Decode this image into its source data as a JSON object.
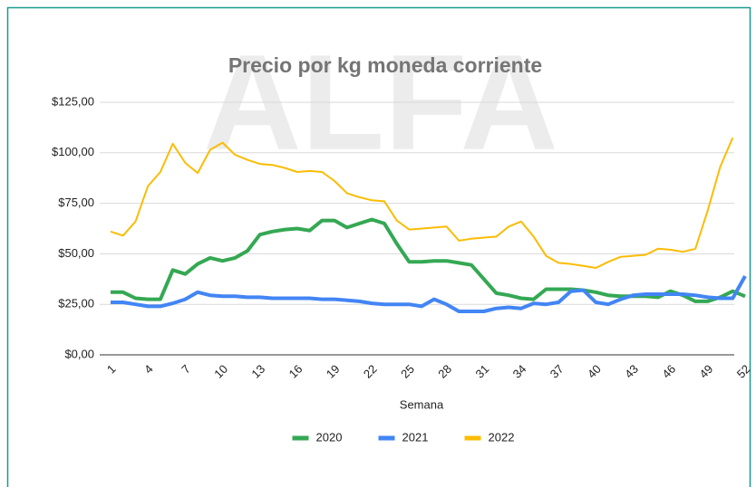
{
  "chart_data": {
    "type": "line",
    "title": "Precio por kg moneda corriente",
    "watermark": "ALFA",
    "x_label": "Semana",
    "x": [
      1,
      2,
      3,
      4,
      5,
      6,
      7,
      8,
      9,
      10,
      11,
      12,
      13,
      14,
      15,
      16,
      17,
      18,
      19,
      20,
      21,
      22,
      23,
      24,
      25,
      26,
      27,
      28,
      29,
      30,
      31,
      32,
      33,
      34,
      35,
      36,
      37,
      38,
      39,
      40,
      41,
      42,
      43,
      44,
      45,
      46,
      47,
      48,
      49,
      50,
      51,
      52
    ],
    "xlim": [
      1,
      52
    ],
    "xticks": [
      1,
      4,
      7,
      10,
      13,
      16,
      19,
      22,
      25,
      28,
      31,
      34,
      37,
      40,
      43,
      46,
      49,
      52
    ],
    "ylim": [
      0,
      125
    ],
    "yticks": [
      {
        "value": 0,
        "label": "$0,00"
      },
      {
        "value": 25,
        "label": "$25,00"
      },
      {
        "value": 50,
        "label": "$50,00"
      },
      {
        "value": 75,
        "label": "$75,00"
      },
      {
        "value": 100,
        "label": "$100,00"
      },
      {
        "value": 125,
        "label": "$125,00"
      }
    ],
    "grid": true,
    "legend": "bottom",
    "series": [
      {
        "name": "2020",
        "color": "#34a853",
        "width": 4,
        "values": [
          31,
          31,
          28,
          27.5,
          27.5,
          42,
          40,
          45,
          48,
          46.5,
          48,
          51.5,
          59.5,
          61,
          62,
          62.5,
          61.5,
          66.5,
          66.5,
          63,
          65,
          67,
          65,
          55,
          46,
          46,
          46.5,
          46.5,
          45.5,
          44.5,
          37.5,
          30.5,
          29.5,
          28,
          27.5,
          32.5,
          32.5,
          32.5,
          32,
          31,
          29.5,
          29,
          29,
          29,
          28.5,
          31.5,
          29.5,
          26.5,
          26.5,
          28.5,
          31.5,
          29
        ]
      },
      {
        "name": "2021",
        "color": "#4285f4",
        "width": 4,
        "values": [
          26,
          26,
          25,
          24,
          24,
          25.5,
          27.5,
          31,
          29.5,
          29,
          29,
          28.5,
          28.5,
          28,
          28,
          28,
          28,
          27.5,
          27.5,
          27,
          26.5,
          25.5,
          25,
          25,
          25,
          24,
          27.5,
          25,
          21.5,
          21.5,
          21.5,
          23,
          23.5,
          23,
          25.5,
          25,
          26,
          31.5,
          32,
          26,
          25,
          27.5,
          29.5,
          30,
          30,
          30,
          30,
          29.5,
          28.5,
          28,
          28,
          39
        ]
      },
      {
        "name": "2022",
        "color": "#fbbc04",
        "width": 2,
        "values": [
          61,
          59,
          66,
          83.5,
          90.5,
          104.5,
          95,
          90,
          101.5,
          105,
          99,
          96.5,
          94.5,
          94,
          92.5,
          90.5,
          91,
          90.5,
          86,
          80,
          78,
          76.5,
          76,
          66.5,
          62,
          62.5,
          63,
          63.5,
          56.5,
          57.5,
          58,
          58.5,
          63.5,
          66,
          58.5,
          49,
          45.5,
          45,
          44,
          43,
          46,
          48.5,
          49,
          49.5,
          52.5,
          52,
          51,
          52.5,
          71.5,
          93,
          107.5,
          null
        ]
      }
    ]
  }
}
